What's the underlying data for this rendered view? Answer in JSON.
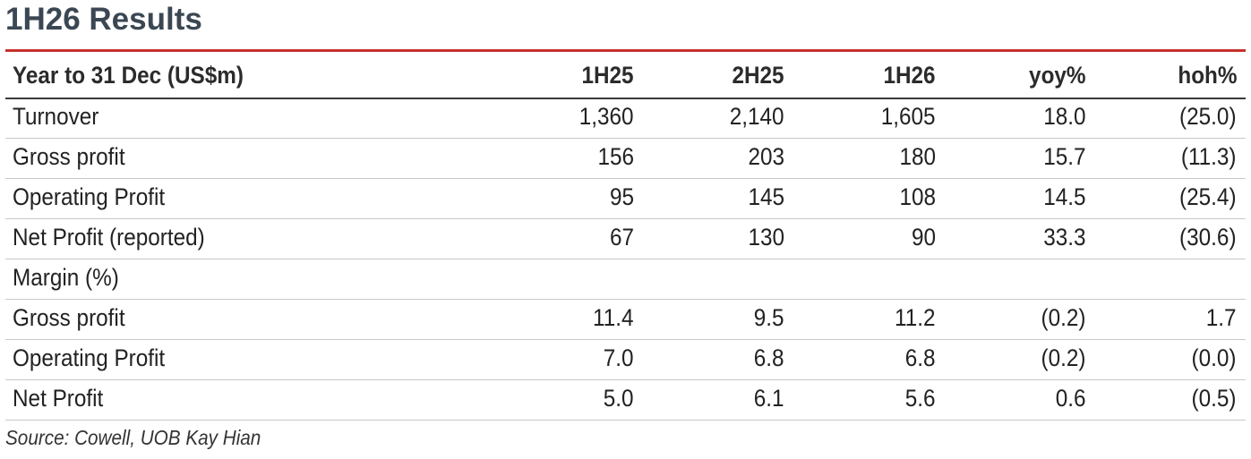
{
  "header": {
    "title": "1H26 Results"
  },
  "table": {
    "columns": [
      "Year to 31 Dec (US$m)",
      "1H25",
      "2H25",
      "1H26",
      "yoy%",
      "hoh%"
    ],
    "rows": [
      {
        "label": "Turnover",
        "values": [
          "1,360",
          "2,140",
          "1,605",
          "18.0",
          "(25.0)"
        ]
      },
      {
        "label": "Gross profit",
        "values": [
          "156",
          "203",
          "180",
          "15.7",
          "(11.3)"
        ]
      },
      {
        "label": "Operating Profit",
        "values": [
          "95",
          "145",
          "108",
          "14.5",
          "(25.4)"
        ]
      },
      {
        "label": "Net Profit (reported)",
        "values": [
          "67",
          "130",
          "90",
          "33.3",
          "(30.6)"
        ]
      },
      {
        "label": "Margin (%)"
      },
      {
        "label": "Gross profit",
        "values": [
          "11.4",
          "9.5",
          "11.2",
          "(0.2)",
          "1.7"
        ]
      },
      {
        "label": "Operating Profit",
        "values": [
          "7.0",
          "6.8",
          "6.8",
          "(0.2)",
          "(0.0)"
        ]
      },
      {
        "label": "Net Profit",
        "values": [
          "5.0",
          "6.1",
          "5.6",
          "0.6",
          "(0.5)"
        ]
      }
    ]
  },
  "footer": {
    "source": "Source: Cowell, UOB Kay Hian"
  }
}
